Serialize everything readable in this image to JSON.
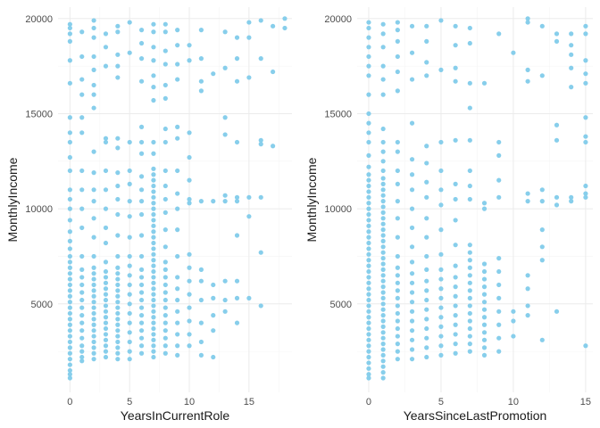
{
  "chart_data": [
    {
      "type": "scatter",
      "xlabel": "YearsInCurrentRole",
      "ylabel": "MonthlyIncome",
      "xlim": [
        -1,
        18.6
      ],
      "ylim": [
        350,
        20600
      ],
      "xticks": [
        0,
        5,
        10,
        15
      ],
      "yticks": [
        5000,
        10000,
        15000,
        20000
      ],
      "grid": true,
      "point_color": "#87CEEB",
      "columns": [
        {
          "x": 0,
          "y": [
            1100,
            1300,
            1500,
            1800,
            2100,
            2400,
            2700,
            3000,
            3300,
            3600,
            3900,
            4200,
            4500,
            4800,
            5100,
            5400,
            5700,
            6000,
            6300,
            6600,
            6900,
            7200,
            7500,
            7900,
            8300,
            8800,
            9400,
            10000,
            10500,
            11000,
            12000,
            12700,
            13500,
            14000,
            14800,
            16600,
            17800,
            18800,
            19200,
            19500,
            19700
          ]
        },
        {
          "x": 1,
          "y": [
            2000,
            2200,
            2500,
            2800,
            3200,
            3600,
            4000,
            4400,
            4800,
            5200,
            5600,
            6000,
            6400,
            6800,
            7500,
            9000,
            10000,
            11000,
            12000,
            14000,
            14800,
            16000,
            16800,
            18000,
            19300
          ]
        },
        {
          "x": 2,
          "y": [
            2100,
            2400,
            2700,
            3000,
            3300,
            3600,
            3900,
            4200,
            4500,
            4800,
            5100,
            5400,
            5700,
            6000,
            6300,
            6600,
            6900,
            7500,
            8500,
            9500,
            10400,
            11000,
            11900,
            13000,
            15300,
            16000,
            16500,
            17300,
            18000,
            19000,
            19500,
            19900
          ]
        },
        {
          "x": 3,
          "y": [
            2200,
            2500,
            2800,
            3100,
            3400,
            3700,
            4000,
            4300,
            4600,
            4900,
            5200,
            5500,
            5800,
            6100,
            6400,
            6700,
            7200,
            8200,
            9000,
            10000,
            11000,
            12000,
            13500,
            13700,
            17500,
            18500,
            19200
          ]
        },
        {
          "x": 4,
          "y": [
            2100,
            2400,
            2700,
            3000,
            3300,
            3600,
            3900,
            4200,
            4500,
            4800,
            5100,
            5400,
            5700,
            6000,
            6300,
            6600,
            6900,
            7500,
            8600,
            9700,
            10500,
            11200,
            11900,
            13200,
            13700,
            16900,
            17500,
            18100,
            19300,
            19600
          ]
        },
        {
          "x": 5,
          "y": [
            2100,
            2500,
            3000,
            3500,
            4000,
            4500,
            5000,
            5500,
            6000,
            6500,
            7000,
            7500,
            8500,
            9600,
            10400,
            11300,
            12000,
            13500,
            18200,
            19800
          ]
        },
        {
          "x": 6,
          "y": [
            2400,
            2800,
            3200,
            3600,
            4000,
            4400,
            4800,
            5200,
            5600,
            6000,
            6400,
            6800,
            7500,
            8600,
            9700,
            10400,
            11000,
            11700,
            12900,
            13500,
            14300,
            16700,
            17900,
            18700,
            19400
          ]
        },
        {
          "x": 7,
          "y": [
            2200,
            2500,
            2800,
            3100,
            3400,
            3700,
            4000,
            4300,
            4600,
            4900,
            5200,
            5500,
            5800,
            6100,
            6400,
            6700,
            7000,
            7300,
            7600,
            7900,
            8200,
            8500,
            8800,
            9100,
            9400,
            9700,
            10000,
            10300,
            10600,
            10900,
            11200,
            11500,
            11800,
            12100,
            12900,
            13500,
            15700,
            16400,
            17000,
            17800,
            18500,
            19300,
            19700
          ]
        },
        {
          "x": 8,
          "y": [
            2400,
            2800,
            3200,
            3600,
            4000,
            4400,
            4800,
            5200,
            5600,
            6000,
            6400,
            6800,
            7200,
            8000,
            8900,
            9800,
            10500,
            11200,
            12000,
            13500,
            14200,
            15800,
            16500,
            17600,
            18300,
            19300,
            19700
          ]
        },
        {
          "x": 9,
          "y": [
            2300,
            2800,
            3400,
            4000,
            4600,
            5200,
            5800,
            6400,
            7500,
            8900,
            10000,
            10800,
            12000,
            13700,
            14300,
            16800,
            17600,
            18600,
            19400
          ]
        },
        {
          "x": 10,
          "y": [
            2800,
            3400,
            4100,
            4800,
            5500,
            6200,
            6900,
            7600,
            10300,
            10500,
            11500,
            12700,
            14000,
            17800,
            18600
          ]
        },
        {
          "x": 11,
          "y": [
            2300,
            3000,
            4000,
            5200,
            6200,
            6800,
            10400,
            16200,
            16700,
            17900,
            19400
          ]
        },
        {
          "x": 12,
          "y": [
            2200,
            3600,
            4400,
            5300,
            6000,
            10400,
            17100
          ]
        },
        {
          "x": 13,
          "y": [
            4600,
            5200,
            6200,
            10400,
            10700,
            13900,
            14800,
            17400,
            19300
          ]
        },
        {
          "x": 14,
          "y": [
            4000,
            5300,
            6200,
            8600,
            10400,
            10600,
            13500,
            16700,
            17900,
            19000
          ]
        },
        {
          "x": 15,
          "y": [
            5300,
            9600,
            10600,
            16900,
            19000,
            19800
          ]
        },
        {
          "x": 16,
          "y": [
            4900,
            7700,
            10600,
            13400,
            13600,
            17900,
            19900
          ]
        },
        {
          "x": 17,
          "y": [
            13300,
            17200,
            19600
          ]
        },
        {
          "x": 18,
          "y": [
            19500,
            20000
          ]
        }
      ]
    },
    {
      "type": "scatter",
      "xlabel": "YearsSinceLastPromotion",
      "ylabel": "MonthlyIncome",
      "xlim": [
        -0.8,
        15.5
      ],
      "ylim": [
        350,
        20600
      ],
      "xticks": [
        0,
        5,
        10,
        15
      ],
      "yticks": [
        5000,
        10000,
        15000,
        20000
      ],
      "grid": true,
      "point_color": "#87CEEB",
      "columns": [
        {
          "x": 0,
          "y": [
            1100,
            1300,
            1600,
            1900,
            2200,
            2500,
            2800,
            3100,
            3400,
            3700,
            4000,
            4300,
            4600,
            4900,
            5200,
            5500,
            5800,
            6100,
            6400,
            6700,
            7000,
            7300,
            7600,
            7900,
            8200,
            8500,
            8800,
            9100,
            9400,
            9700,
            10000,
            10300,
            10600,
            10900,
            11200,
            11500,
            11800,
            12200,
            12800,
            13500,
            14000,
            14500,
            15000,
            16000,
            17000,
            17500,
            18000,
            18500,
            19000,
            19500,
            19800
          ]
        },
        {
          "x": 1,
          "y": [
            1100,
            1400,
            1700,
            2000,
            2300,
            2600,
            2900,
            3200,
            3500,
            3800,
            4100,
            4400,
            4700,
            5000,
            5300,
            5600,
            5900,
            6200,
            6500,
            6800,
            7100,
            7400,
            7700,
            8000,
            8300,
            8600,
            8900,
            9200,
            9500,
            9800,
            10100,
            10400,
            10700,
            11000,
            11300,
            11600,
            12000,
            12500,
            13000,
            13500,
            14200,
            16000,
            16800,
            17500,
            18500,
            19200,
            19700
          ]
        },
        {
          "x": 2,
          "y": [
            2100,
            2500,
            2900,
            3300,
            3700,
            4100,
            4500,
            4900,
            5300,
            5700,
            6100,
            6500,
            6900,
            7500,
            8500,
            9500,
            10400,
            11300,
            12000,
            13000,
            13500,
            16200,
            17200,
            18000,
            18800,
            19400,
            19800
          ]
        },
        {
          "x": 3,
          "y": [
            2100,
            2600,
            3100,
            3600,
            4100,
            4600,
            5100,
            5600,
            6100,
            6600,
            7200,
            8000,
            9000,
            10000,
            11000,
            11800,
            12600,
            14500,
            16800,
            18200,
            19600
          ]
        },
        {
          "x": 4,
          "y": [
            2200,
            2700,
            3200,
            3700,
            4200,
            4700,
            5200,
            5700,
            6200,
            6800,
            7500,
            8500,
            9500,
            10600,
            11400,
            12400,
            13300,
            17000,
            17700,
            18800,
            19600
          ]
        },
        {
          "x": 5,
          "y": [
            2300,
            2800,
            3300,
            3800,
            4300,
            4800,
            5300,
            5800,
            6300,
            6800,
            7600,
            8900,
            10200,
            11000,
            12000,
            13500,
            17300,
            19900
          ]
        },
        {
          "x": 6,
          "y": [
            2400,
            2900,
            3400,
            3900,
            4400,
            4900,
            5400,
            5900,
            6400,
            7000,
            8100,
            9400,
            10500,
            11300,
            13600,
            16700,
            17400,
            18600,
            19600
          ]
        },
        {
          "x": 7,
          "y": [
            2500,
            2900,
            3300,
            3700,
            4100,
            4500,
            4900,
            5300,
            5700,
            6100,
            6500,
            6900,
            7300,
            7700,
            8100,
            10500,
            11200,
            12000,
            13600,
            15300,
            16600,
            18700,
            19500
          ]
        },
        {
          "x": 8,
          "y": [
            2300,
            2700,
            3100,
            3500,
            3900,
            4300,
            4700,
            5100,
            5500,
            5900,
            6300,
            6700,
            7100,
            10000,
            10300,
            16600
          ]
        },
        {
          "x": 9,
          "y": [
            2500,
            3200,
            3900,
            4600,
            5300,
            6000,
            6700,
            7400,
            10600,
            11500,
            12800,
            13500,
            19200
          ]
        },
        {
          "x": 10,
          "y": [
            3300,
            4100,
            4600,
            18200
          ]
        },
        {
          "x": 11,
          "y": [
            4400,
            4900,
            5800,
            6500,
            10400,
            10800,
            16700,
            17300,
            19800,
            20000
          ]
        },
        {
          "x": 12,
          "y": [
            3100,
            7300,
            8000,
            8900,
            10400,
            11000,
            17000,
            19600
          ]
        },
        {
          "x": 13,
          "y": [
            4600,
            10200,
            10600,
            13600,
            14400,
            18800,
            19200
          ]
        },
        {
          "x": 14,
          "y": [
            10400,
            10600,
            16400,
            17400,
            18100,
            18600,
            19200
          ]
        },
        {
          "x": 15,
          "y": [
            2800,
            10600,
            10800,
            11200,
            13500,
            13800,
            14800,
            16600,
            17100,
            17800,
            19200,
            19600
          ]
        }
      ]
    }
  ]
}
